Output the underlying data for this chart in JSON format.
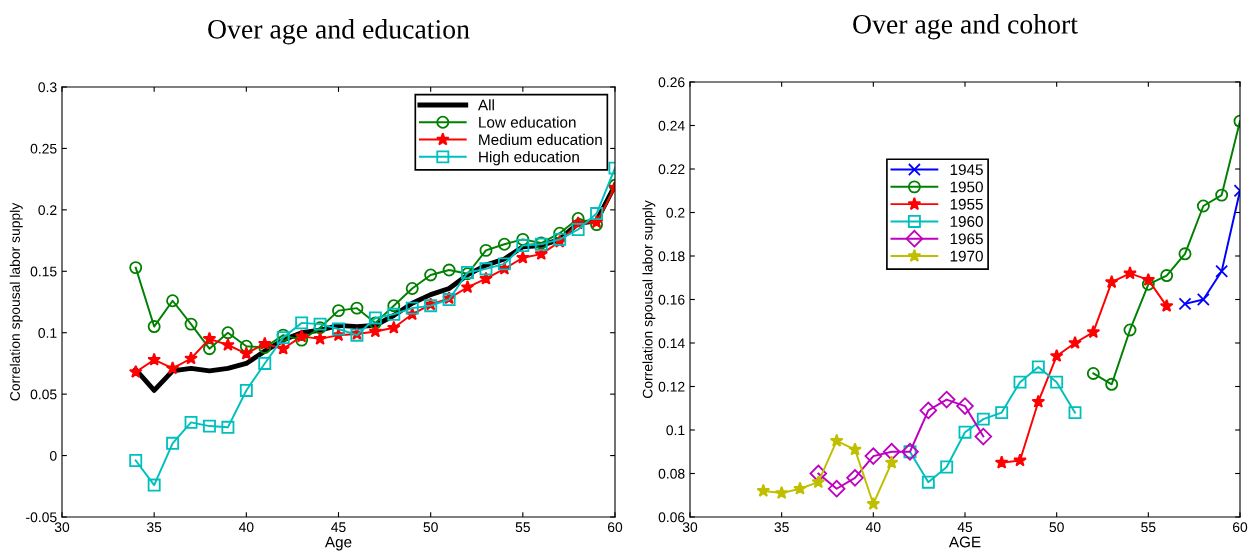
{
  "chart_data": [
    {
      "type": "line",
      "title": "Over age and education",
      "xlabel": "Age",
      "ylabel": "Correlation spousal labor supply",
      "xlim": [
        30,
        60
      ],
      "ylim": [
        -0.05,
        0.3
      ],
      "xticks": [
        30,
        35,
        40,
        45,
        50,
        55,
        60
      ],
      "yticks": [
        -0.05,
        0,
        0.05,
        0.1,
        0.15,
        0.2,
        0.25,
        0.3
      ],
      "grid": false,
      "legend": "top right",
      "x": [
        34,
        35,
        36,
        37,
        38,
        39,
        40,
        41,
        42,
        43,
        44,
        45,
        46,
        47,
        48,
        49,
        50,
        51,
        52,
        53,
        54,
        55,
        56,
        57,
        58,
        59,
        60
      ],
      "series": [
        {
          "name": "All",
          "color": "#000000",
          "marker": "none",
          "values": [
            0.07,
            0.053,
            0.069,
            0.071,
            0.069,
            0.071,
            0.075,
            0.085,
            0.094,
            0.1,
            0.102,
            0.106,
            0.105,
            0.106,
            0.114,
            0.124,
            0.131,
            0.136,
            0.147,
            0.155,
            0.16,
            0.17,
            0.171,
            0.176,
            0.189,
            0.191,
            0.22
          ]
        },
        {
          "name": "Low education",
          "color": "#008000",
          "marker": "circle",
          "values": [
            0.153,
            0.105,
            0.126,
            0.107,
            0.087,
            0.1,
            0.089,
            0.088,
            0.098,
            0.094,
            0.104,
            0.118,
            0.12,
            0.108,
            0.122,
            0.136,
            0.147,
            0.151,
            0.148,
            0.167,
            0.172,
            0.176,
            0.173,
            0.181,
            0.193,
            0.188,
            0.22
          ]
        },
        {
          "name": "Medium education",
          "color": "#ff0000",
          "marker": "star",
          "values": [
            0.068,
            0.078,
            0.071,
            0.079,
            0.095,
            0.09,
            0.083,
            0.091,
            0.087,
            0.097,
            0.095,
            0.098,
            0.099,
            0.101,
            0.104,
            0.115,
            0.123,
            0.128,
            0.137,
            0.144,
            0.152,
            0.161,
            0.164,
            0.174,
            0.189,
            0.19,
            0.218
          ]
        },
        {
          "name": "High education",
          "color": "#00bfbf",
          "marker": "square",
          "values": [
            -0.004,
            -0.024,
            0.01,
            0.027,
            0.024,
            0.023,
            0.053,
            0.075,
            0.096,
            0.108,
            0.107,
            0.103,
            0.098,
            0.112,
            0.115,
            0.12,
            0.122,
            0.127,
            0.149,
            0.152,
            0.156,
            0.171,
            0.172,
            0.176,
            0.184,
            0.197,
            0.234
          ]
        }
      ]
    },
    {
      "type": "line",
      "title": "Over age and cohort",
      "xlabel": "AGE",
      "ylabel": "Correlation spousal labor supply",
      "xlim": [
        30,
        60
      ],
      "ylim": [
        0.06,
        0.26
      ],
      "xticks": [
        30,
        35,
        40,
        45,
        50,
        55,
        60
      ],
      "yticks": [
        0.06,
        0.08,
        0.1,
        0.12,
        0.14,
        0.16,
        0.18,
        0.2,
        0.22,
        0.24,
        0.26
      ],
      "grid": false,
      "legend": "top",
      "series": [
        {
          "name": "1945",
          "color": "#0000ff",
          "marker": "cross",
          "x": [
            57,
            58,
            59,
            60
          ],
          "values": [
            0.158,
            0.16,
            0.173,
            0.21
          ]
        },
        {
          "name": "1950",
          "color": "#008000",
          "marker": "circle",
          "x": [
            52,
            53,
            54,
            55,
            56,
            57,
            58,
            59,
            60
          ],
          "values": [
            0.126,
            0.121,
            0.146,
            0.167,
            0.171,
            0.181,
            0.203,
            0.208,
            0.242
          ]
        },
        {
          "name": "1955",
          "color": "#ff0000",
          "marker": "star",
          "x": [
            47,
            48,
            49,
            50,
            51,
            52,
            53,
            54,
            55,
            56
          ],
          "values": [
            0.085,
            0.086,
            0.113,
            0.134,
            0.14,
            0.145,
            0.168,
            0.172,
            0.169,
            0.157
          ]
        },
        {
          "name": "1960",
          "color": "#00bfbf",
          "marker": "square",
          "x": [
            42,
            43,
            44,
            45,
            46,
            47,
            48,
            49,
            50,
            51
          ],
          "values": [
            0.09,
            0.076,
            0.083,
            0.099,
            0.105,
            0.108,
            0.122,
            0.129,
            0.122,
            0.108
          ]
        },
        {
          "name": "1965",
          "color": "#bf00bf",
          "marker": "diamond",
          "x": [
            37,
            38,
            39,
            40,
            41,
            42,
            43,
            44,
            45,
            46
          ],
          "values": [
            0.08,
            0.073,
            0.078,
            0.088,
            0.09,
            0.09,
            0.109,
            0.114,
            0.111,
            0.097
          ]
        },
        {
          "name": "1970",
          "color": "#bfbf00",
          "marker": "star",
          "x": [
            34,
            35,
            36,
            37,
            38,
            39,
            40,
            41
          ],
          "values": [
            0.072,
            0.071,
            0.073,
            0.076,
            0.095,
            0.091,
            0.066,
            0.085
          ]
        }
      ]
    }
  ]
}
